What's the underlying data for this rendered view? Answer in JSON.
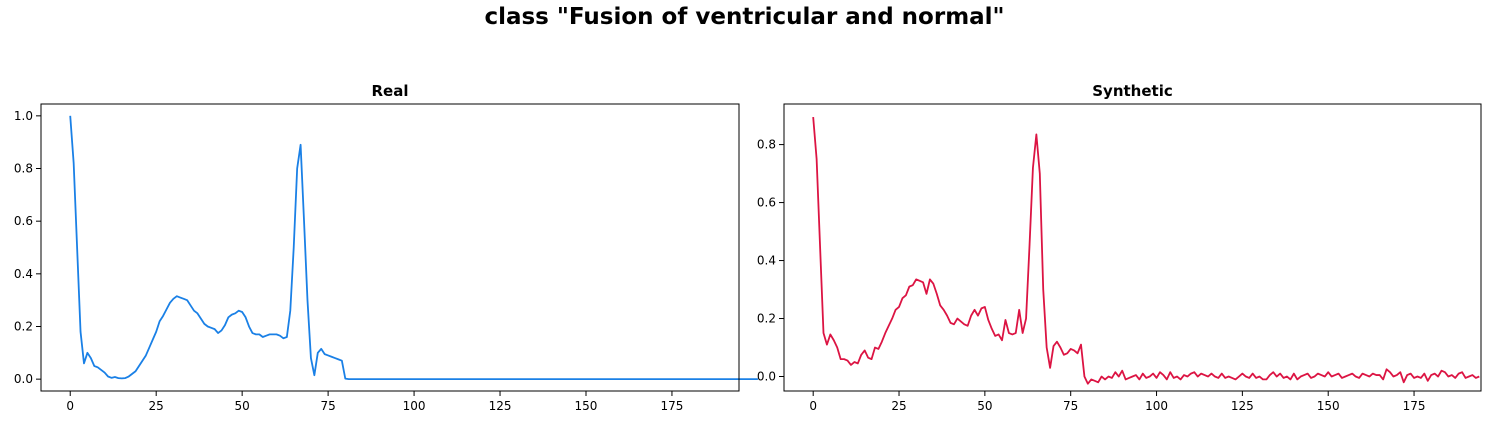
{
  "figure": {
    "title": "class \"Fusion of ventricular and normal\""
  },
  "chart_data": [
    {
      "type": "line",
      "title": "Real",
      "xlabel": "",
      "ylabel": "",
      "xlim": [
        -8.5,
        194.5
      ],
      "ylim": [
        -0.045,
        1.045
      ],
      "xticks": [
        0,
        25,
        50,
        75,
        100,
        125,
        150,
        175
      ],
      "yticks": [
        0.0,
        0.2,
        0.4,
        0.6,
        0.8,
        1.0
      ],
      "color": "#1a80e6",
      "x_start": 0,
      "values": [
        1.0,
        0.82,
        0.5,
        0.18,
        0.06,
        0.1,
        0.08,
        0.05,
        0.045,
        0.035,
        0.025,
        0.01,
        0.005,
        0.008,
        0.004,
        0.003,
        0.004,
        0.01,
        0.02,
        0.03,
        0.05,
        0.07,
        0.09,
        0.12,
        0.15,
        0.18,
        0.22,
        0.24,
        0.265,
        0.29,
        0.305,
        0.315,
        0.31,
        0.305,
        0.3,
        0.28,
        0.26,
        0.25,
        0.23,
        0.21,
        0.2,
        0.195,
        0.19,
        0.175,
        0.185,
        0.205,
        0.235,
        0.245,
        0.25,
        0.26,
        0.255,
        0.235,
        0.2,
        0.175,
        0.17,
        0.17,
        0.16,
        0.165,
        0.17,
        0.17,
        0.17,
        0.165,
        0.155,
        0.16,
        0.26,
        0.5,
        0.8,
        0.89,
        0.6,
        0.3,
        0.08,
        0.015,
        0.1,
        0.115,
        0.095,
        0.09,
        0.085,
        0.08,
        0.075,
        0.07,
        0.002,
        0.0,
        0.0,
        0.0,
        0.0,
        0.0,
        0.0,
        0.0,
        0.0,
        0.0,
        0.0,
        0.0,
        0.0,
        0.0,
        0.0,
        0.0,
        0.0,
        0.0,
        0.0,
        0.0,
        0.0,
        0.0,
        0.0,
        0.0,
        0.0,
        0.0,
        0.0,
        0.0,
        0.0,
        0.0,
        0.0,
        0.0,
        0.0,
        0.0,
        0.0,
        0.0,
        0.0,
        0.0,
        0.0,
        0.0,
        0.0,
        0.0,
        0.0,
        0.0,
        0.0,
        0.0,
        0.0,
        0.0,
        0.0,
        0.0,
        0.0,
        0.0,
        0.0,
        0.0,
        0.0,
        0.0,
        0.0,
        0.0,
        0.0,
        0.0,
        0.0,
        0.0,
        0.0,
        0.0,
        0.0,
        0.0,
        0.0,
        0.0,
        0.0,
        0.0,
        0.0,
        0.0,
        0.0,
        0.0,
        0.0,
        0.0,
        0.0,
        0.0,
        0.0,
        0.0,
        0.0,
        0.0,
        0.0,
        0.0,
        0.0,
        0.0,
        0.0,
        0.0,
        0.0,
        0.0,
        0.0,
        0.0,
        0.0,
        0.0,
        0.0,
        0.0,
        0.0,
        0.0,
        0.0,
        0.0,
        0.0,
        0.0,
        0.0,
        0.0,
        0.0,
        0.0,
        0.0,
        0.0,
        0.0,
        0.0,
        0.0,
        0.0,
        0.0,
        0.0,
        0.0,
        0.0,
        0.0,
        0.0,
        0.0,
        0.0,
        0.0
      ]
    },
    {
      "type": "line",
      "title": "Synthetic",
      "xlabel": "",
      "ylabel": "",
      "xlim": [
        -8.5,
        194.5
      ],
      "ylim": [
        -0.05,
        0.94
      ],
      "xticks": [
        0,
        25,
        50,
        75,
        100,
        125,
        150,
        175
      ],
      "yticks": [
        0.0,
        0.2,
        0.4,
        0.6,
        0.8
      ],
      "color": "#dc1443",
      "x_start": 0,
      "values": [
        0.895,
        0.75,
        0.45,
        0.15,
        0.11,
        0.145,
        0.125,
        0.1,
        0.06,
        0.06,
        0.055,
        0.04,
        0.05,
        0.045,
        0.075,
        0.09,
        0.065,
        0.06,
        0.1,
        0.095,
        0.12,
        0.15,
        0.175,
        0.2,
        0.23,
        0.24,
        0.27,
        0.28,
        0.31,
        0.315,
        0.335,
        0.33,
        0.325,
        0.285,
        0.335,
        0.32,
        0.285,
        0.245,
        0.23,
        0.21,
        0.185,
        0.18,
        0.2,
        0.19,
        0.18,
        0.175,
        0.21,
        0.23,
        0.21,
        0.235,
        0.24,
        0.195,
        0.165,
        0.14,
        0.145,
        0.125,
        0.195,
        0.15,
        0.145,
        0.15,
        0.23,
        0.15,
        0.2,
        0.45,
        0.72,
        0.835,
        0.7,
        0.3,
        0.1,
        0.03,
        0.105,
        0.12,
        0.1,
        0.075,
        0.08,
        0.095,
        0.09,
        0.08,
        0.11,
        0.0,
        -0.025,
        -0.01,
        -0.015,
        -0.02,
        0.0,
        -0.01,
        0.0,
        -0.005,
        0.015,
        0.0,
        0.02,
        -0.01,
        -0.005,
        0.0,
        0.005,
        -0.01,
        0.01,
        -0.005,
        0.0,
        0.01,
        -0.005,
        0.015,
        0.005,
        -0.01,
        0.015,
        -0.005,
        0.0,
        -0.01,
        0.005,
        0.0,
        0.01,
        0.015,
        0.0,
        0.01,
        0.005,
        0.0,
        0.01,
        0.0,
        -0.005,
        0.01,
        -0.005,
        0.0,
        -0.005,
        -0.01,
        0.0,
        0.01,
        0.0,
        -0.005,
        0.01,
        -0.005,
        0.0,
        -0.01,
        -0.01,
        0.005,
        0.015,
        0.0,
        0.01,
        -0.005,
        0.0,
        -0.01,
        0.01,
        -0.01,
        0.0,
        0.005,
        0.01,
        -0.005,
        0.0,
        0.01,
        0.005,
        0.0,
        0.015,
        0.0,
        0.005,
        0.01,
        -0.005,
        0.0,
        0.005,
        0.01,
        0.0,
        -0.005,
        0.01,
        0.005,
        0.0,
        0.01,
        0.005,
        0.005,
        -0.01,
        0.025,
        0.015,
        0.0,
        0.005,
        0.015,
        -0.02,
        0.005,
        0.01,
        -0.005,
        0.0,
        -0.005,
        0.01,
        -0.015,
        0.005,
        0.01,
        0.0,
        0.02,
        0.015,
        0.0,
        0.005,
        -0.005,
        0.01,
        0.015,
        -0.005,
        0.0,
        0.005,
        -0.005,
        0.0
      ]
    }
  ]
}
